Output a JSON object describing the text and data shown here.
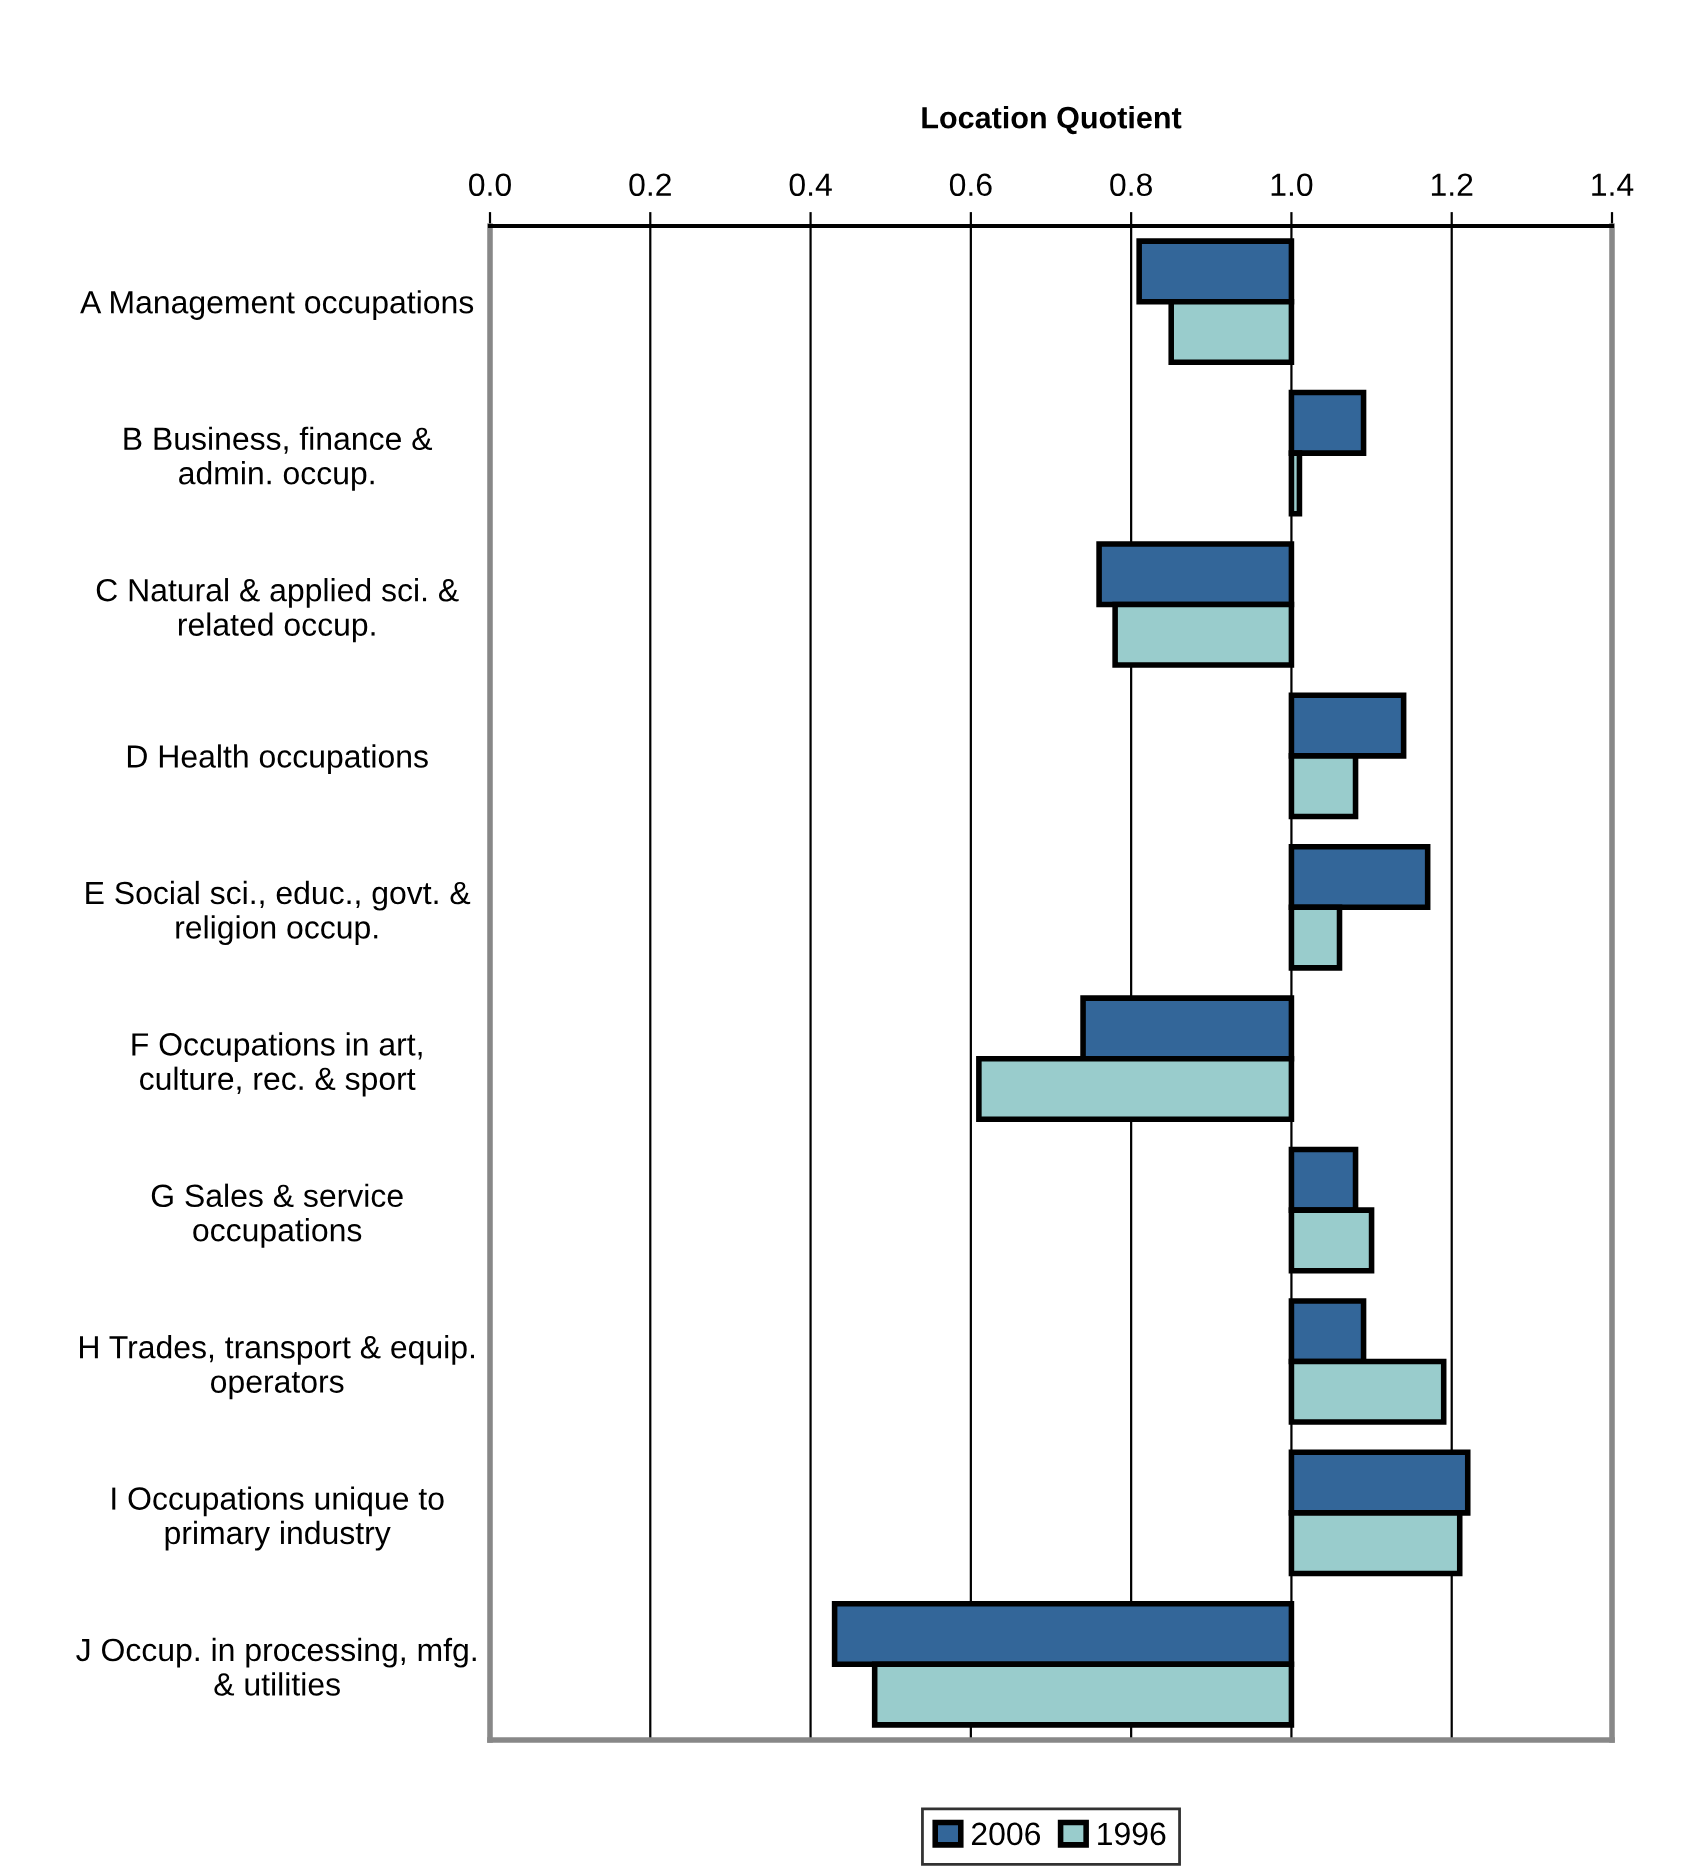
{
  "chart_data": {
    "type": "bar",
    "orientation": "horizontal",
    "xlabel": "Location Quotient",
    "categories": [
      "A Management occupations",
      "B Business, finance &\nadmin. occup.",
      "C Natural & applied sci. &\nrelated occup.",
      "D Health occupations",
      "E Social sci., educ., govt. &\nreligion occup.",
      "F Occupations in art,\nculture, rec. & sport",
      "G Sales & service\noccupations",
      "H Trades, transport & equip.\noperators",
      "I Occupations unique to\nprimary industry",
      "J Occup. in processing, mfg.\n& utilities"
    ],
    "series": [
      {
        "name": "2006",
        "color": "#336699",
        "base": [
          1,
          1,
          1,
          1,
          1,
          1,
          1,
          1,
          1,
          1
        ],
        "values": [
          -0.19,
          0.09,
          -0.24,
          0.14,
          0.17,
          -0.26,
          0.08,
          0.09,
          0.22,
          -0.57
        ]
      },
      {
        "name": "1996",
        "color": "#99cccc",
        "base": [
          1,
          1,
          1,
          1,
          1,
          1,
          1,
          1,
          1,
          1
        ],
        "values": [
          -0.15,
          0.01,
          -0.22,
          0.08,
          0.06,
          -0.39,
          0.1,
          0.19,
          0.21,
          -0.52
        ]
      }
    ],
    "xlim": [
      0,
      1.4
    ],
    "xticks": [
      {
        "value": 0,
        "label": "0.0"
      },
      {
        "value": 0.2,
        "label": "0.2"
      },
      {
        "value": 0.4,
        "label": "0.4"
      },
      {
        "value": 0.6,
        "label": "0.6"
      },
      {
        "value": 0.8,
        "label": "0.8"
      },
      {
        "value": 1.0,
        "label": "1.0"
      },
      {
        "value": 1.2,
        "label": "1.2"
      },
      {
        "value": 1.4,
        "label": "1.4"
      }
    ],
    "grid": "x",
    "legend": "bottom"
  }
}
